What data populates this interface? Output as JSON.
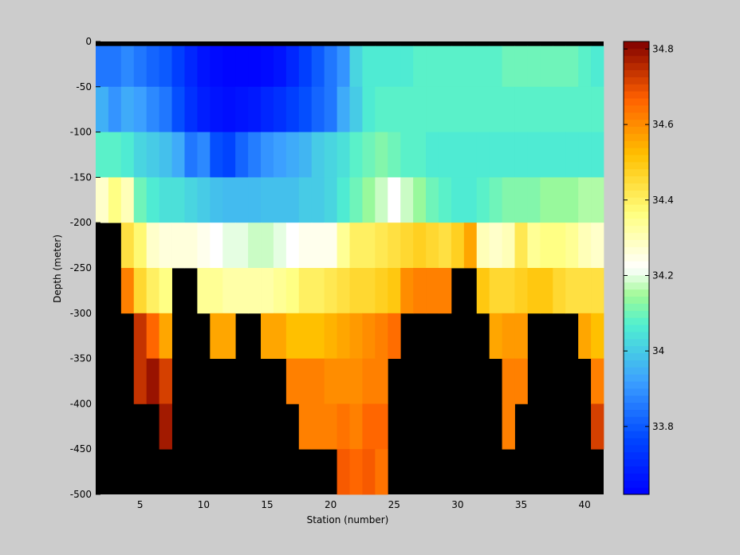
{
  "chart_data": {
    "type": "heatmap",
    "title": "",
    "xlabel": "Station (number)",
    "ylabel": "Depth (meter)",
    "xlim": [
      1.5,
      41.5
    ],
    "ylim": [
      -500,
      0
    ],
    "xticks": [
      5,
      10,
      15,
      20,
      25,
      30,
      35,
      40
    ],
    "yticks": [
      0,
      -50,
      -100,
      -150,
      -200,
      -250,
      -300,
      -350,
      -400,
      -450,
      -500
    ],
    "stations": [
      2,
      3,
      4,
      5,
      6,
      7,
      8,
      9,
      10,
      11,
      12,
      13,
      14,
      15,
      16,
      17,
      18,
      19,
      20,
      21,
      22,
      23,
      24,
      25,
      26,
      27,
      28,
      29,
      30,
      31,
      32,
      33,
      34,
      35,
      36,
      37,
      38,
      39,
      40,
      41
    ],
    "depths": [
      0,
      -25,
      -75,
      -125,
      -175,
      -225,
      -275,
      -325,
      -375,
      -425,
      -475
    ],
    "missing_value_color": "#000000",
    "colorbar": {
      "colormap": "jet",
      "clim": [
        33.62,
        34.82
      ],
      "ticks": [
        33.8,
        34,
        34.2,
        34.4,
        34.6,
        34.8
      ],
      "tick_labels": [
        "33.8",
        "34",
        "34.2",
        "34.4",
        "34.6",
        "34.8"
      ]
    },
    "values": [
      [
        null,
        null,
        null,
        null,
        null,
        null,
        null,
        null,
        null,
        null,
        null,
        null,
        null,
        null,
        null,
        null,
        null,
        null,
        null,
        null,
        null,
        null,
        null,
        null,
        null,
        null,
        null,
        null,
        null,
        null,
        null,
        null,
        null,
        null,
        null,
        null,
        null,
        null,
        null,
        null
      ],
      [
        33.85,
        33.85,
        33.88,
        33.85,
        33.82,
        33.8,
        33.75,
        33.7,
        33.66,
        33.64,
        33.63,
        33.63,
        33.63,
        33.64,
        33.66,
        33.7,
        33.75,
        33.8,
        33.85,
        33.9,
        34.02,
        34.06,
        34.06,
        34.06,
        34.06,
        34.08,
        34.08,
        34.08,
        34.08,
        34.08,
        34.08,
        34.08,
        34.1,
        34.1,
        34.1,
        34.1,
        34.1,
        34.1,
        34.08,
        34.06
      ],
      [
        33.95,
        33.9,
        33.94,
        33.92,
        33.88,
        33.85,
        33.78,
        33.72,
        33.68,
        33.66,
        33.65,
        33.66,
        33.67,
        33.7,
        33.72,
        33.75,
        33.78,
        33.82,
        33.85,
        33.94,
        34.0,
        34.06,
        34.08,
        34.08,
        34.08,
        34.08,
        34.08,
        34.08,
        34.08,
        34.08,
        34.08,
        34.08,
        34.08,
        34.08,
        34.08,
        34.08,
        34.08,
        34.08,
        34.08,
        34.08
      ],
      [
        34.08,
        34.08,
        34.06,
        34.02,
        34.0,
        33.98,
        33.94,
        33.85,
        33.88,
        33.78,
        33.76,
        33.82,
        33.86,
        33.9,
        33.92,
        33.94,
        33.96,
        34.0,
        34.02,
        34.04,
        34.08,
        34.1,
        34.12,
        34.1,
        34.08,
        34.08,
        34.06,
        34.06,
        34.06,
        34.06,
        34.06,
        34.06,
        34.06,
        34.06,
        34.06,
        34.06,
        34.06,
        34.06,
        34.06,
        34.06
      ],
      [
        34.28,
        34.36,
        34.3,
        34.1,
        34.06,
        34.04,
        34.04,
        34.02,
        34.0,
        33.98,
        33.97,
        33.97,
        33.97,
        33.98,
        33.98,
        33.98,
        34.0,
        34.0,
        34.02,
        34.06,
        34.1,
        34.14,
        34.18,
        34.22,
        34.18,
        34.14,
        34.1,
        34.08,
        34.06,
        34.06,
        34.08,
        34.1,
        34.12,
        34.12,
        34.12,
        34.14,
        34.14,
        34.14,
        34.16,
        34.16
      ],
      [
        null,
        null,
        34.44,
        34.38,
        34.28,
        34.26,
        34.26,
        34.26,
        34.24,
        34.22,
        34.2,
        34.2,
        34.18,
        34.18,
        34.2,
        34.22,
        34.24,
        34.24,
        34.24,
        34.34,
        34.4,
        34.4,
        34.42,
        34.44,
        34.46,
        34.48,
        34.46,
        34.44,
        34.48,
        34.56,
        34.3,
        34.28,
        34.3,
        34.42,
        34.34,
        34.36,
        34.36,
        34.34,
        34.3,
        34.28
      ],
      [
        null,
        null,
        34.62,
        34.46,
        34.4,
        34.36,
        null,
        null,
        34.34,
        34.34,
        34.32,
        34.32,
        34.32,
        34.32,
        34.34,
        34.36,
        34.4,
        34.4,
        34.42,
        34.44,
        34.46,
        34.46,
        34.48,
        34.5,
        34.6,
        34.62,
        34.62,
        34.62,
        null,
        null,
        34.5,
        34.46,
        34.46,
        34.48,
        34.5,
        34.5,
        34.46,
        34.44,
        34.44,
        34.44
      ],
      [
        null,
        null,
        null,
        34.74,
        34.66,
        34.56,
        null,
        null,
        null,
        34.56,
        34.56,
        null,
        null,
        34.56,
        34.56,
        34.52,
        34.52,
        34.52,
        34.54,
        34.56,
        34.58,
        34.6,
        34.62,
        34.65,
        null,
        null,
        null,
        null,
        null,
        null,
        null,
        34.56,
        34.58,
        34.58,
        null,
        null,
        null,
        null,
        34.56,
        34.52
      ],
      [
        null,
        null,
        null,
        34.74,
        34.79,
        34.72,
        null,
        null,
        null,
        null,
        null,
        null,
        null,
        null,
        null,
        34.62,
        34.62,
        34.62,
        34.6,
        34.6,
        34.6,
        34.62,
        34.62,
        null,
        null,
        null,
        null,
        null,
        null,
        null,
        null,
        null,
        34.62,
        34.62,
        null,
        null,
        null,
        null,
        null,
        34.62
      ],
      [
        null,
        null,
        null,
        null,
        null,
        34.78,
        null,
        null,
        null,
        null,
        null,
        null,
        null,
        null,
        null,
        null,
        34.62,
        34.62,
        34.62,
        34.64,
        34.62,
        34.66,
        34.66,
        null,
        null,
        null,
        null,
        null,
        null,
        null,
        null,
        null,
        34.62,
        null,
        null,
        null,
        null,
        null,
        null,
        34.72
      ],
      [
        null,
        null,
        null,
        null,
        null,
        null,
        null,
        null,
        null,
        null,
        null,
        null,
        null,
        null,
        null,
        null,
        null,
        null,
        null,
        34.68,
        34.66,
        34.68,
        34.64,
        null,
        null,
        null,
        null,
        null,
        null,
        null,
        null,
        null,
        null,
        null,
        null,
        null,
        null,
        null,
        null,
        null
      ]
    ]
  }
}
